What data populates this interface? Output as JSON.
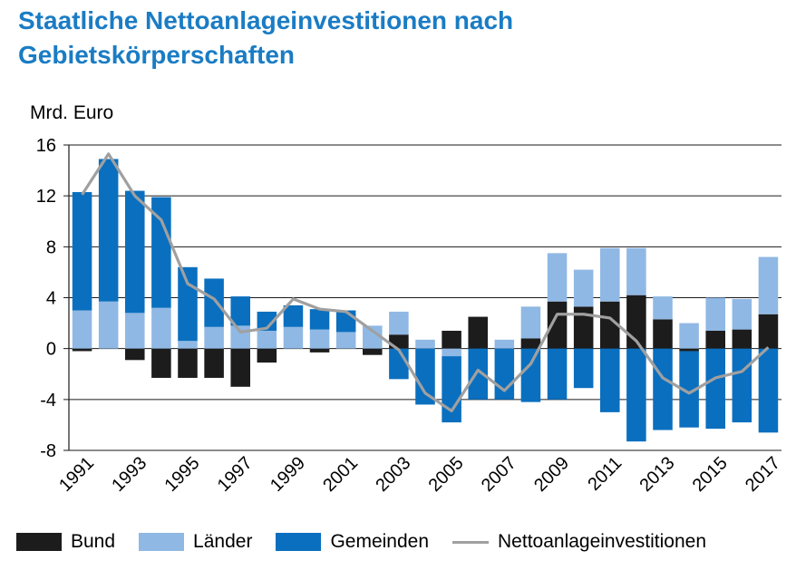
{
  "chart_data": {
    "type": "bar",
    "title": "Staatliche Nettoanlageinvestitionen nach Gebietskörperschaften",
    "ylabel": "Mrd. Euro",
    "ylim": [
      -8,
      16
    ],
    "yticks": [
      16,
      12,
      8,
      4,
      0,
      -4,
      -8
    ],
    "grid": true,
    "legend_position": "bottom",
    "stacked": true,
    "categories": [
      "1991",
      "1992",
      "1993",
      "1994",
      "1995",
      "1996",
      "1997",
      "1998",
      "1999",
      "2000",
      "2001",
      "2002",
      "2003",
      "2004",
      "2005",
      "2006",
      "2007",
      "2008",
      "2009",
      "2010",
      "2011",
      "2012",
      "2013",
      "2014",
      "2015",
      "2016",
      "2017"
    ],
    "xtick_labels": [
      "1991",
      "",
      "1993",
      "",
      "1995",
      "",
      "1997",
      "",
      "1999",
      "",
      "2001",
      "",
      "2003",
      "",
      "2005",
      "",
      "2007",
      "",
      "2009",
      "",
      "2011",
      "",
      "2013",
      "",
      "2015",
      "",
      "2017"
    ],
    "series": [
      {
        "name": "Bund",
        "kind": "bar",
        "color": "#1c1c1c",
        "values": [
          -0.2,
          0,
          -0.9,
          -2.3,
          -2.3,
          -2.3,
          -3.0,
          -1.1,
          0,
          -0.3,
          0,
          -0.5,
          1.1,
          0,
          1.4,
          2.5,
          0,
          0.8,
          3.7,
          3.3,
          3.7,
          4.2,
          2.3,
          -0.2,
          1.4,
          1.5,
          2.7
        ]
      },
      {
        "name": "Länder",
        "kind": "bar",
        "color": "#90b8e4",
        "values": [
          3.0,
          3.7,
          2.8,
          3.2,
          0.6,
          1.7,
          1.8,
          1.4,
          1.7,
          1.5,
          1.3,
          1.8,
          1.8,
          0.7,
          -0.6,
          0,
          0.7,
          2.5,
          3.8,
          2.9,
          4.2,
          3.7,
          1.8,
          2.0,
          2.6,
          2.4,
          4.5
        ]
      },
      {
        "name": "Gemeinden",
        "kind": "bar",
        "color": "#0a6fbf",
        "values": [
          9.3,
          11.2,
          9.6,
          8.7,
          5.8,
          3.8,
          2.3,
          1.5,
          1.7,
          1.6,
          1.7,
          0,
          -2.4,
          -4.4,
          -5.2,
          -4.0,
          -4.0,
          -4.2,
          -4.0,
          -3.1,
          -5.0,
          -7.3,
          -6.4,
          -6.0,
          -6.3,
          -5.8,
          -6.6
        ]
      },
      {
        "name": "Nettoanlageinvestitionen",
        "kind": "line",
        "color": "#a0a0a0",
        "values": [
          12.1,
          15.3,
          12.0,
          10.1,
          5.1,
          3.9,
          1.3,
          1.6,
          3.9,
          3.1,
          2.9,
          1.4,
          -0.1,
          -3.5,
          -4.9,
          -1.7,
          -3.3,
          -1.2,
          2.7,
          2.7,
          2.4,
          0.6,
          -2.3,
          -3.5,
          -2.3,
          -1.8,
          0.1
        ]
      }
    ]
  }
}
